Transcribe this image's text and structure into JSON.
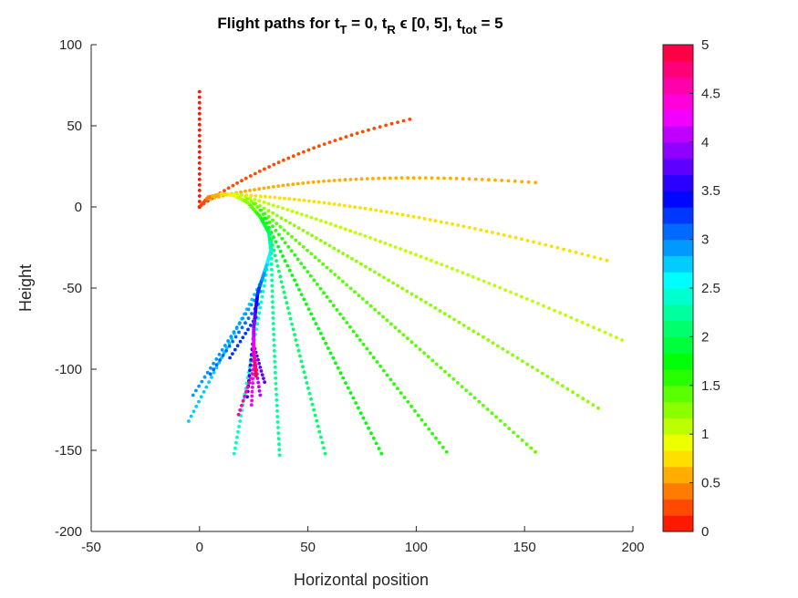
{
  "chart_data": {
    "type": "scatter",
    "title": {
      "parts": [
        {
          "text": "Flight paths for t",
          "sub": false
        },
        {
          "text": "T",
          "sub": true
        },
        {
          "text": " = 0, t",
          "sub": false
        },
        {
          "text": "R",
          "sub": true
        },
        {
          "text": " ϵ [0, 5], t",
          "sub": false
        },
        {
          "text": "tot",
          "sub": true
        },
        {
          "text": " = 5",
          "sub": false
        }
      ]
    },
    "xlabel": "Horizontal position",
    "ylabel": "Height",
    "xlim": [
      -50,
      200
    ],
    "ylim": [
      -200,
      100
    ],
    "xticks": [
      "-50",
      "0",
      "50",
      "100",
      "150",
      "200"
    ],
    "yticks": [
      "100",
      "50",
      "0",
      "-50",
      "-100",
      "-150",
      "-200"
    ],
    "grid": false,
    "colorbar": {
      "range": [
        0,
        5
      ],
      "levels": 30,
      "ticks": [
        "0",
        "0.5",
        "1",
        "1.5",
        "2",
        "2.5",
        "3",
        "3.5",
        "4",
        "4.5",
        "5"
      ],
      "colormap": "hsv"
    },
    "flight_paths": [
      {
        "t_R": 0.0,
        "start": [
          0,
          0
        ],
        "end": [
          0,
          71
        ],
        "bow": [
          0,
          0
        ]
      },
      {
        "t_R": 0.25,
        "start": [
          2,
          2
        ],
        "end": [
          97,
          54
        ],
        "bow": [
          -10,
          8
        ]
      },
      {
        "t_R": 0.5,
        "start": [
          5,
          5
        ],
        "end": [
          155,
          15
        ],
        "bow": [
          -18,
          14
        ]
      },
      {
        "t_R": 0.75,
        "start": [
          11,
          8
        ],
        "end": [
          188,
          -33
        ],
        "bow": [
          -14,
          16
        ]
      },
      {
        "t_R": 1.0,
        "start": [
          17,
          8
        ],
        "end": [
          195,
          -82
        ],
        "bow": [
          -10,
          14
        ]
      },
      {
        "t_R": 1.2,
        "start": [
          22,
          5
        ],
        "end": [
          184,
          -124
        ],
        "bow": [
          -8,
          10
        ]
      },
      {
        "t_R": 1.4,
        "start": [
          25,
          2
        ],
        "end": [
          155,
          -151
        ],
        "bow": [
          -5,
          7
        ]
      },
      {
        "t_R": 1.6,
        "start": [
          28,
          -2
        ],
        "end": [
          114,
          -151
        ],
        "bow": [
          -3,
          5
        ]
      },
      {
        "t_R": 1.8,
        "start": [
          30,
          -7
        ],
        "end": [
          84,
          -152
        ],
        "bow": [
          -2,
          3
        ]
      },
      {
        "t_R": 2.0,
        "start": [
          32,
          -14
        ],
        "end": [
          58,
          -152
        ],
        "bow": [
          -1,
          2
        ]
      },
      {
        "t_R": 2.2,
        "start": [
          33,
          -22
        ],
        "end": [
          37,
          -153
        ],
        "bow": [
          -1,
          1
        ]
      },
      {
        "t_R": 2.45,
        "start": [
          32,
          -32
        ],
        "end": [
          16,
          -152
        ],
        "bow": [
          0,
          0
        ]
      },
      {
        "t_R": 2.7,
        "start": [
          30,
          -42
        ],
        "end": [
          -5,
          -132
        ],
        "bow": [
          0,
          0
        ]
      },
      {
        "t_R": 2.9,
        "start": [
          28,
          -52
        ],
        "end": [
          -3,
          -116
        ],
        "bow": [
          0,
          0
        ]
      },
      {
        "t_R": 3.1,
        "start": [
          27,
          -60
        ],
        "end": [
          5,
          -103
        ],
        "bow": [
          0,
          0
        ]
      },
      {
        "t_R": 3.3,
        "start": [
          26,
          -68
        ],
        "end": [
          14,
          -93
        ],
        "bow": [
          0,
          0
        ]
      },
      {
        "t_R": 3.55,
        "start": [
          25,
          -78
        ],
        "end": [
          22,
          -117
        ],
        "bow": [
          0,
          0
        ]
      },
      {
        "t_R": 3.8,
        "start": [
          25,
          -85
        ],
        "end": [
          30,
          -108
        ],
        "bow": [
          0,
          0
        ]
      },
      {
        "t_R": 4.05,
        "start": [
          25,
          -90
        ],
        "end": [
          28,
          -116
        ],
        "bow": [
          0,
          0
        ]
      },
      {
        "t_R": 4.3,
        "start": [
          25,
          -95
        ],
        "end": [
          24,
          -122
        ],
        "bow": [
          0,
          0
        ]
      },
      {
        "t_R": 4.6,
        "start": [
          25,
          -100
        ],
        "end": [
          18,
          -128
        ],
        "bow": [
          0,
          0
        ]
      }
    ],
    "release_curve": {
      "t_max": 5,
      "points": [
        [
          0,
          0
        ],
        [
          4,
          6
        ],
        [
          10,
          8
        ],
        [
          16,
          7
        ],
        [
          22,
          3
        ],
        [
          28,
          -6
        ],
        [
          32,
          -16
        ],
        [
          33,
          -27
        ],
        [
          30,
          -40
        ],
        [
          27,
          -52
        ],
        [
          26,
          -62
        ],
        [
          25,
          -75
        ],
        [
          25,
          -90
        ],
        [
          26,
          -100
        ],
        [
          26,
          -104
        ]
      ]
    }
  }
}
